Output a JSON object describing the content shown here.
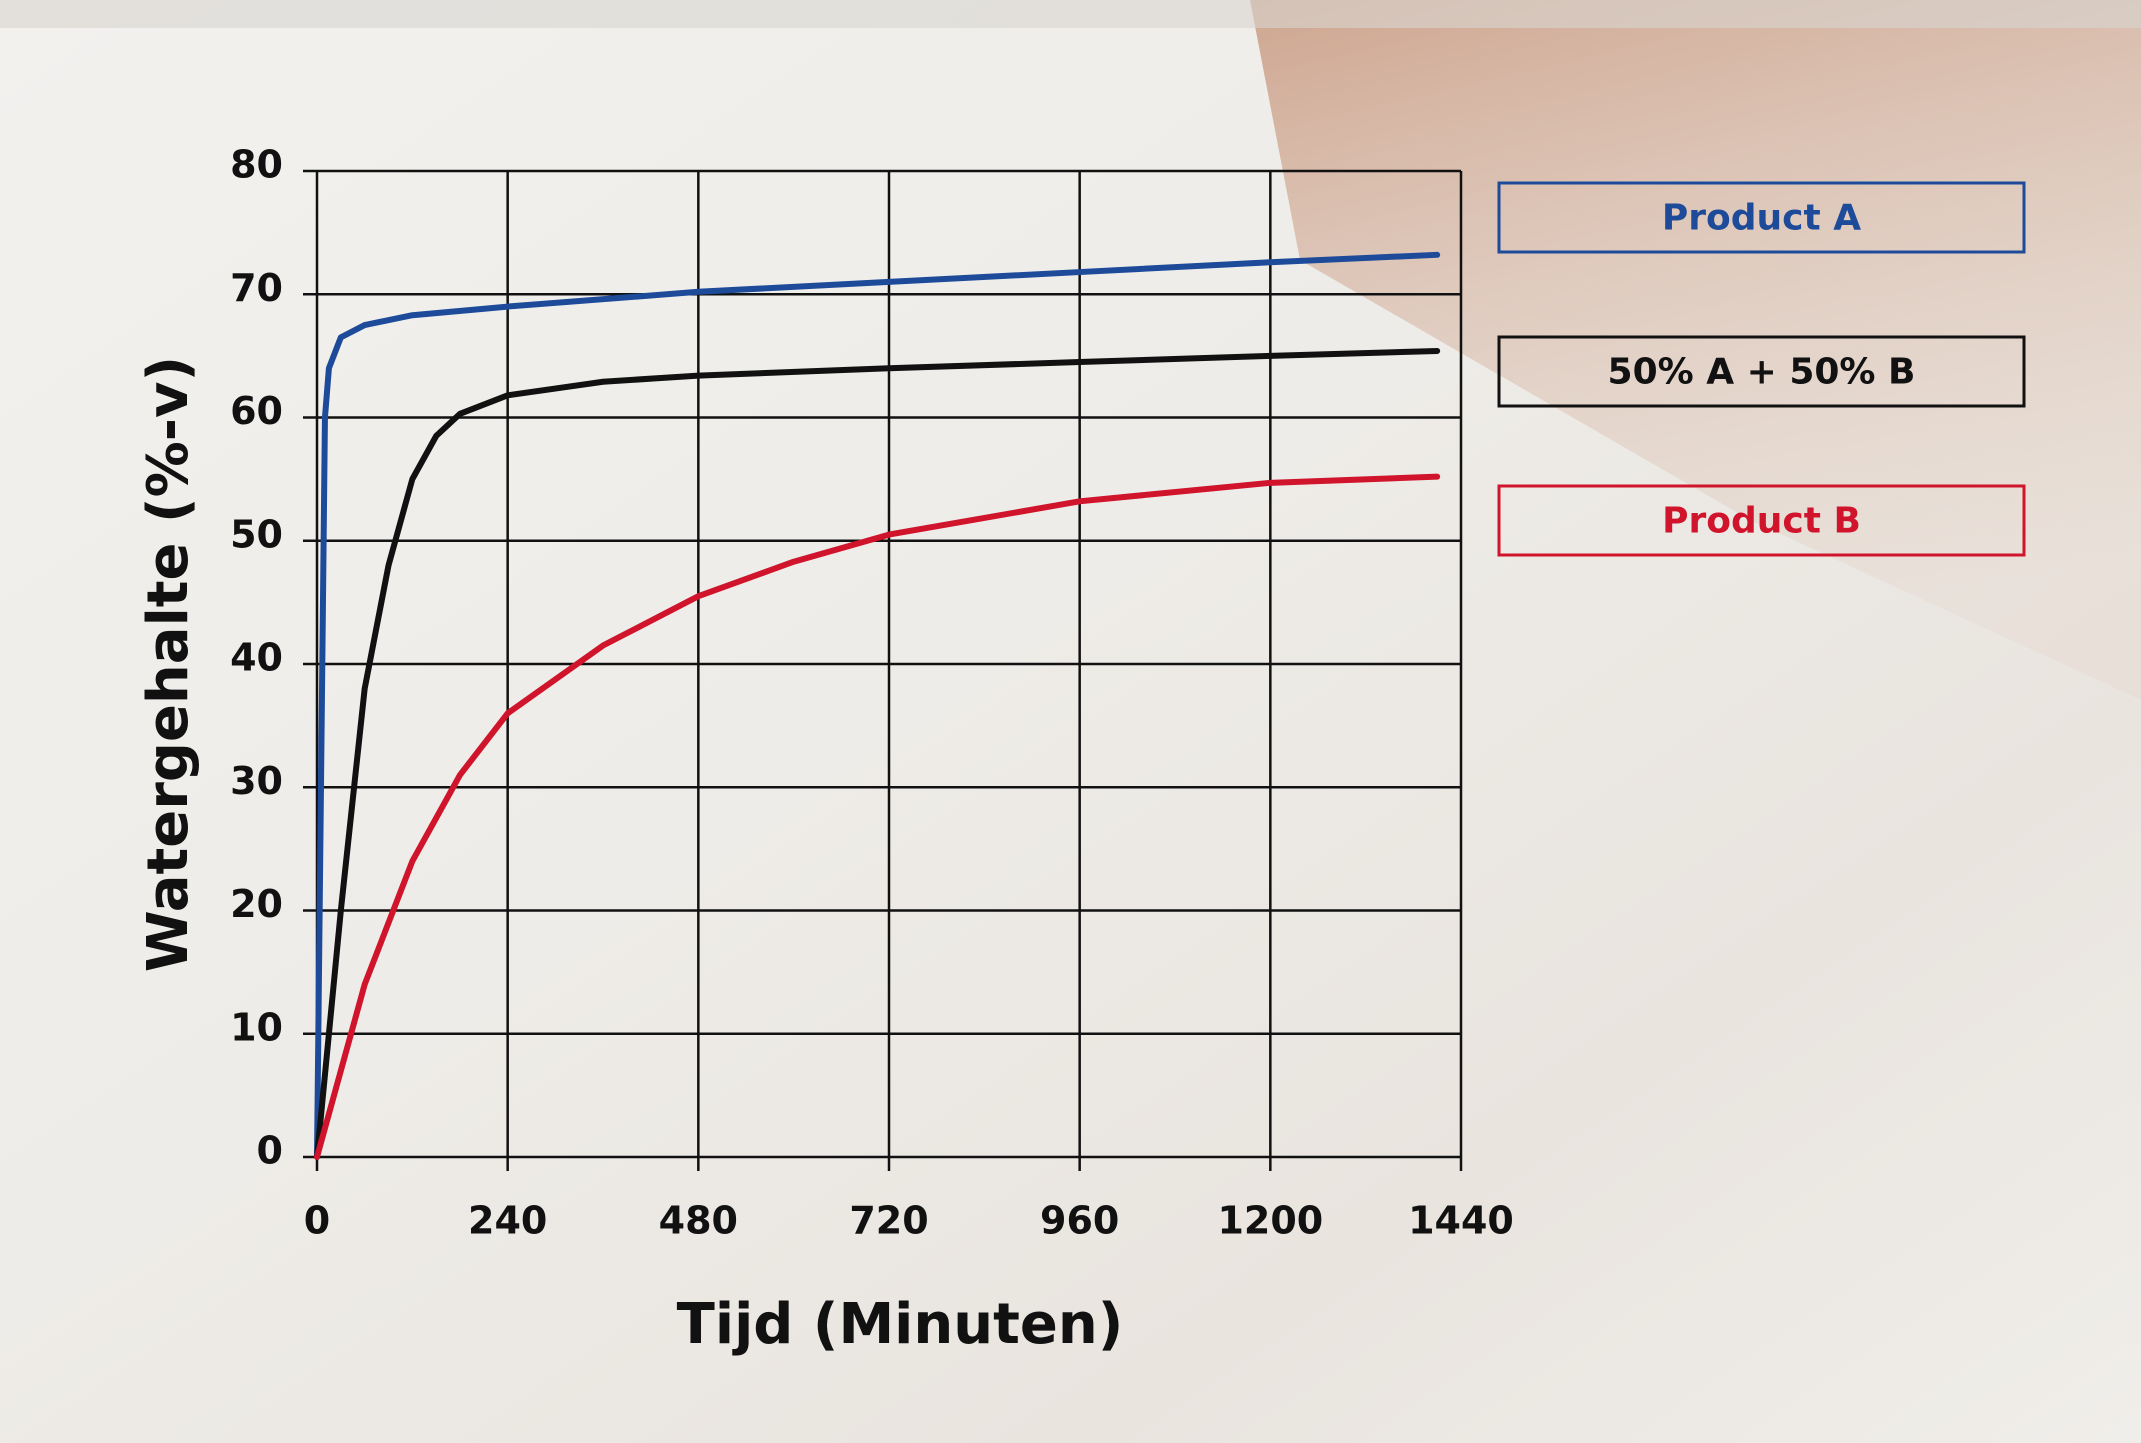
{
  "chart_data": {
    "type": "line",
    "xlabel": "Tijd (Minuten)",
    "ylabel": "Watergehalte (%-v)",
    "xlim": [
      0,
      1440
    ],
    "xticks": [
      0,
      240,
      480,
      720,
      960,
      1200,
      1440
    ],
    "ylim": [
      0,
      80
    ],
    "yticks": [
      0,
      10,
      20,
      30,
      40,
      50,
      60,
      70,
      80
    ],
    "grid": true,
    "series": [
      {
        "name": "Product A",
        "color": "#1d4b9a",
        "x": [
          0,
          5,
          10,
          15,
          30,
          60,
          120,
          240,
          480,
          720,
          960,
          1200,
          1410
        ],
        "values": [
          0,
          30,
          60,
          64,
          66.5,
          67.5,
          68.3,
          69,
          70.2,
          71,
          71.8,
          72.6,
          73.2
        ]
      },
      {
        "name": "50% A + 50% B",
        "color": "#111111",
        "x": [
          0,
          30,
          60,
          90,
          120,
          150,
          180,
          240,
          360,
          480,
          720,
          960,
          1200,
          1410
        ],
        "values": [
          0,
          20,
          38,
          48,
          55,
          58.5,
          60.3,
          61.8,
          62.9,
          63.4,
          64,
          64.5,
          65,
          65.4
        ]
      },
      {
        "name": "Product B",
        "color": "#d0142c",
        "x": [
          0,
          30,
          60,
          120,
          180,
          240,
          360,
          480,
          600,
          720,
          960,
          1200,
          1410
        ],
        "values": [
          0,
          7,
          14,
          24,
          31,
          36,
          41.5,
          45.5,
          48.3,
          50.5,
          53.2,
          54.7,
          55.2
        ]
      }
    ]
  }
}
